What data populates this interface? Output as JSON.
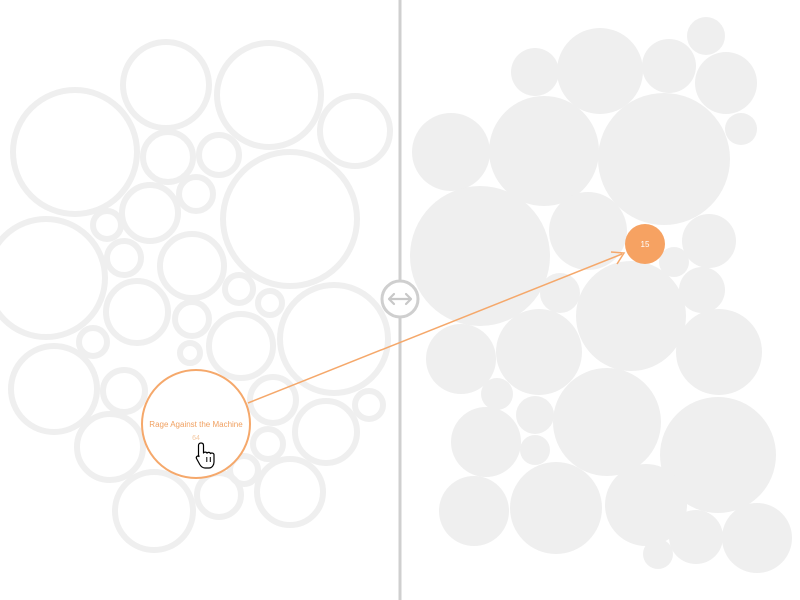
{
  "left_panel": {
    "selected_label": "Rage Against the Machine",
    "selected_count": "64"
  },
  "right_panel": {
    "selected_value": "15"
  },
  "colors": {
    "accent": "#f6a262",
    "bubble": "#efefef",
    "divider": "#cfcfcf"
  },
  "icons": {
    "toggle": "swap-arrows-icon",
    "cursor": "hand-pointer-icon"
  }
}
